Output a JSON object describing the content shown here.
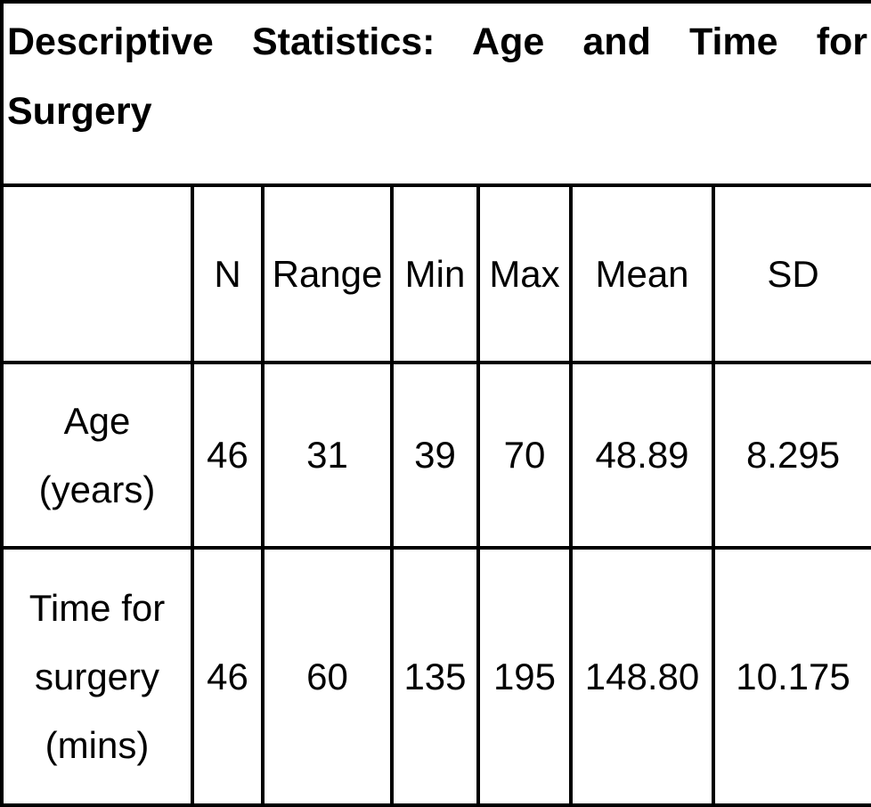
{
  "table": {
    "title": "Descriptive Statistics: Age and Time for Surgery",
    "headers": [
      "",
      "N",
      "Range",
      "Min",
      "Max",
      "Mean",
      "SD"
    ],
    "rows": [
      {
        "label_line1": "Age",
        "label_line2": "(years)",
        "values": [
          "46",
          "31",
          "39",
          "70",
          "48.89",
          "8.295"
        ]
      },
      {
        "label_line1": "Time for",
        "label_line2": "surgery",
        "label_line3": "(mins)",
        "values": [
          "46",
          "60",
          "135",
          "195",
          "148.80",
          "10.175"
        ]
      }
    ]
  }
}
